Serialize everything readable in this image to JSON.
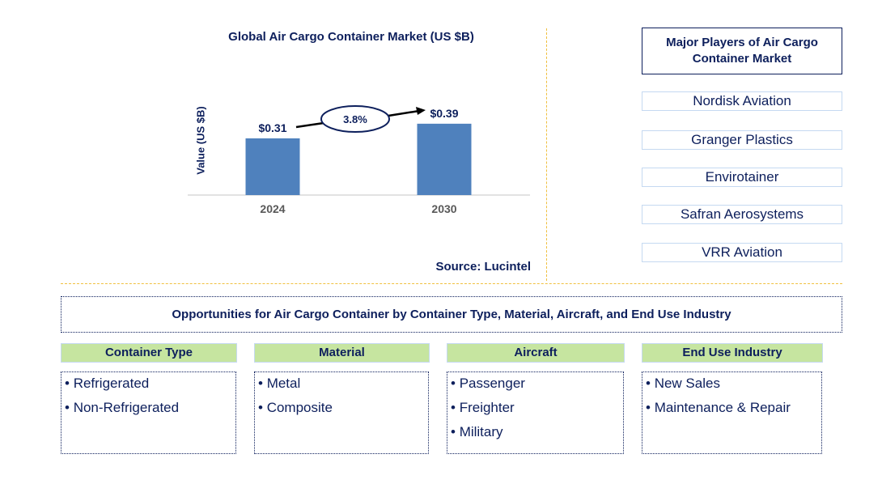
{
  "chart_data": {
    "type": "bar",
    "title": "Global Air Cargo Container Market (US $B)",
    "ylabel": "Value (US $B)",
    "xlabel": "",
    "categories": [
      "2024",
      "2030"
    ],
    "values": [
      0.31,
      0.39
    ],
    "data_labels": [
      "$0.31",
      "$0.39"
    ],
    "cagr_label": "3.8%",
    "bar_color": "#4f81bd",
    "ylim": [
      0,
      0.5
    ],
    "grid": false
  },
  "source": "Source: Lucintel",
  "players": {
    "title": "Major Players of Air Cargo Container Market",
    "items": [
      "Nordisk Aviation",
      "Granger Plastics",
      "Envirotainer",
      "Safran Aerosystems",
      "VRR Aviation"
    ]
  },
  "opportunities": {
    "title": "Opportunities for Air Cargo Container by Container Type, Material, Aircraft, and End Use Industry",
    "categories": [
      {
        "label": "Container Type",
        "items": [
          "Refrigerated",
          "Non-Refrigerated"
        ]
      },
      {
        "label": "Material",
        "items": [
          "Metal",
          "Composite"
        ]
      },
      {
        "label": "Aircraft",
        "items": [
          "Passenger",
          "Freighter",
          "Military"
        ]
      },
      {
        "label": "End Use Industry",
        "items": [
          "New Sales",
          "Maintenance & Repair"
        ]
      }
    ]
  }
}
